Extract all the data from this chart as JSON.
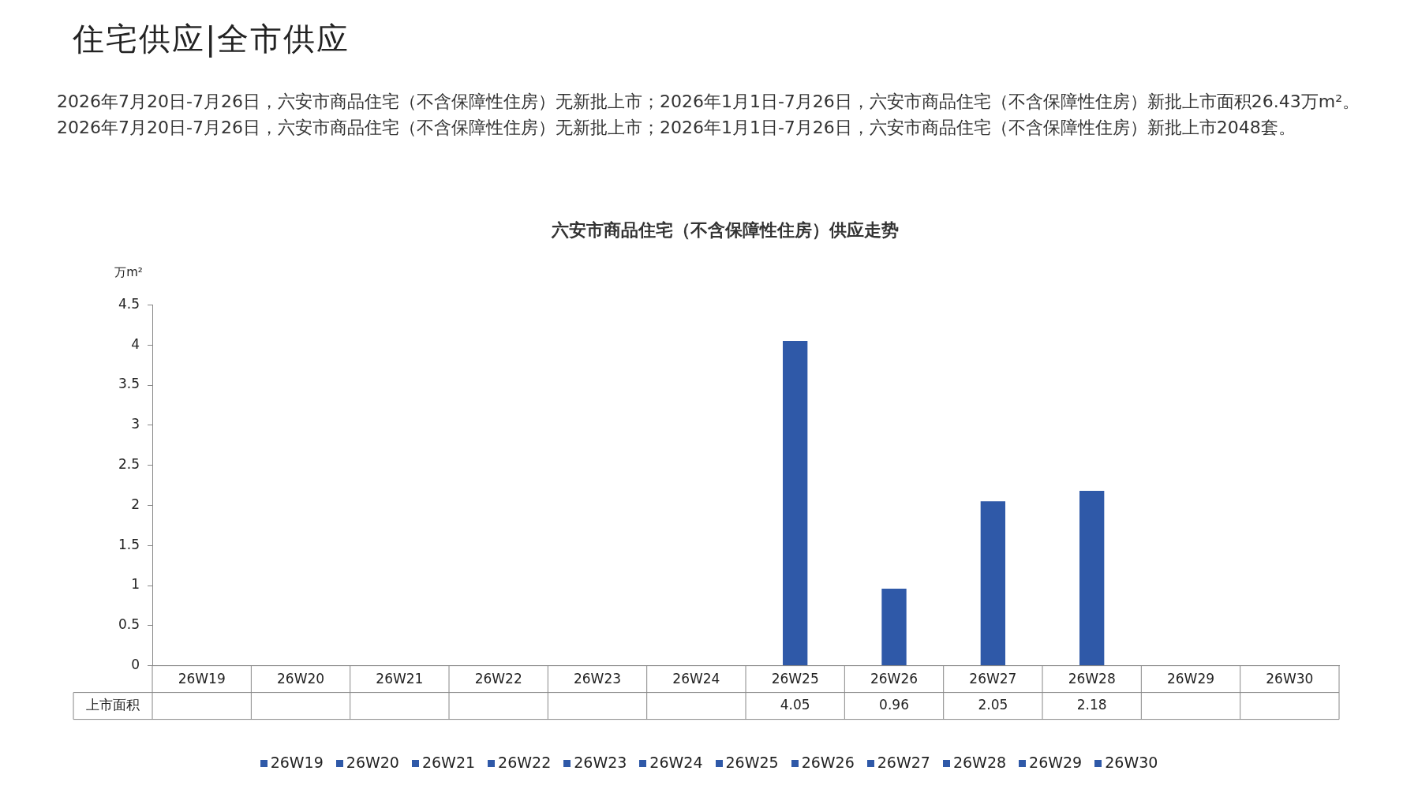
{
  "chart_data": {
    "type": "bar",
    "title": "六安市商品住宅（不含保障性住房）供应走势",
    "ylabel": "万m²",
    "annotations": [
      "住宅供应|全市供应",
      "2026年7月20日-7月26日，六安市商品住宅（不含保障性住房）无新批上市；2026年1月1日-7月26日，六安市商品住宅（不含保障性住房）新批上市面积26.43万m²。2026年7月20日-7月26日，六安市商品住宅（不含保障性住房）无新批上市；2026年1月1日-7月26日，六安市商品住宅（不含保障性住房）新批上市2048套。"
    ],
    "categories": [
      "26W19",
      "26W20",
      "26W21",
      "26W22",
      "26W23",
      "26W24",
      "26W25",
      "26W26",
      "26W27",
      "26W28",
      "26W29",
      "26W30"
    ],
    "series": [
      {
        "name": "上市面积",
        "color": "#2f59a8",
        "values": [
          null,
          null,
          null,
          null,
          null,
          null,
          4.05,
          0.96,
          2.05,
          2.18,
          null,
          null
        ]
      }
    ],
    "ylim": [
      0,
      4.5
    ],
    "yticks": [
      0,
      0.5,
      1,
      1.5,
      2,
      2.5,
      3,
      3.5,
      4,
      4.5
    ],
    "grid": false,
    "data_labels": true,
    "legend": "bottom"
  }
}
